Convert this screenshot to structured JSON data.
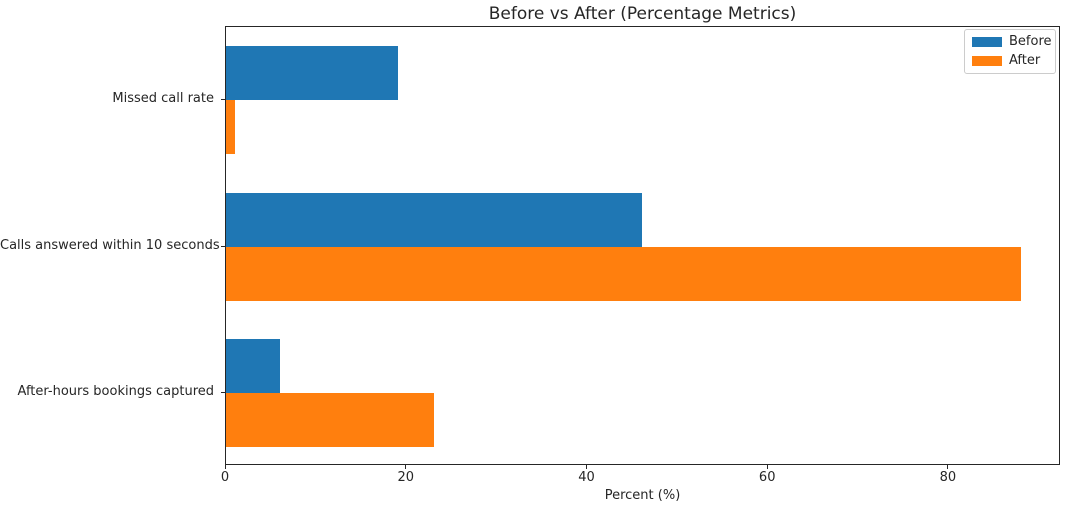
{
  "title": "Before vs After (Percentage Metrics)",
  "chart_data": {
    "type": "bar",
    "orientation": "horizontal",
    "title": "Before vs After (Percentage Metrics)",
    "categories": [
      "Missed call rate",
      "Calls answered within 10 seconds",
      "After-hours bookings captured"
    ],
    "series": [
      {
        "name": "Before",
        "color": "#1f77b4",
        "values": [
          19,
          46,
          6
        ]
      },
      {
        "name": "After",
        "color": "#ff7f0e",
        "values": [
          1,
          88,
          23
        ]
      }
    ],
    "xlabel": "Percent (%)",
    "ylabel": "",
    "xlim": [
      0,
      92.4
    ],
    "xticks": [
      0,
      20,
      40,
      60,
      80
    ],
    "legend_position": "upper right",
    "grid": false
  }
}
